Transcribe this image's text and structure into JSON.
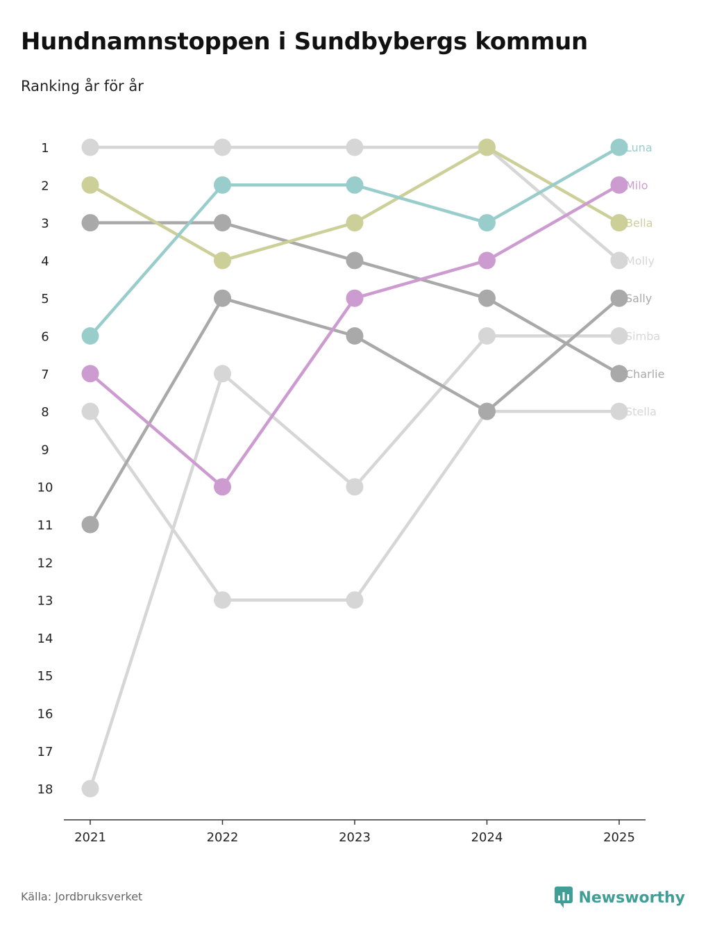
{
  "title": "Hundnamnstoppen i Sundbybergs kommun",
  "subtitle": "Ranking år för år",
  "source": "Källa: Jordbruksverket",
  "brand": "Newsworthy",
  "colors": {
    "Luna": "#99cdcb",
    "Milo": "#cc9bcf",
    "Bella": "#cccf98",
    "Molly": "#d6d6d6",
    "Sally": "#a9a9a9",
    "Simba": "#d6d6d6",
    "Charlie": "#a9a9a9",
    "Stella": "#d6d6d6",
    "brand": "#3f9e95"
  },
  "chart_data": {
    "type": "line",
    "x": [
      "2021",
      "2022",
      "2023",
      "2024",
      "2025"
    ],
    "y_ticks": [
      "1",
      "2",
      "3",
      "4",
      "5",
      "6",
      "7",
      "8",
      "9",
      "10",
      "11",
      "12",
      "13",
      "14",
      "15",
      "16",
      "17",
      "18"
    ],
    "ylim": [
      1,
      18
    ],
    "y_inverted": true,
    "grid": false,
    "series": [
      {
        "name": "Molly",
        "values": [
          1,
          1,
          1,
          1,
          4
        ]
      },
      {
        "name": "Stella",
        "values": [
          8,
          13,
          13,
          8,
          8
        ]
      },
      {
        "name": "Simba",
        "values": [
          18,
          7,
          10,
          6,
          6
        ]
      },
      {
        "name": "Charlie",
        "values": [
          3,
          3,
          4,
          5,
          7
        ]
      },
      {
        "name": "Sally",
        "values": [
          11,
          5,
          6,
          8,
          5
        ]
      },
      {
        "name": "Bella",
        "values": [
          2,
          4,
          3,
          1,
          3
        ]
      },
      {
        "name": "Milo",
        "values": [
          7,
          10,
          5,
          4,
          2
        ]
      },
      {
        "name": "Luna",
        "values": [
          6,
          2,
          2,
          3,
          1
        ]
      }
    ]
  }
}
